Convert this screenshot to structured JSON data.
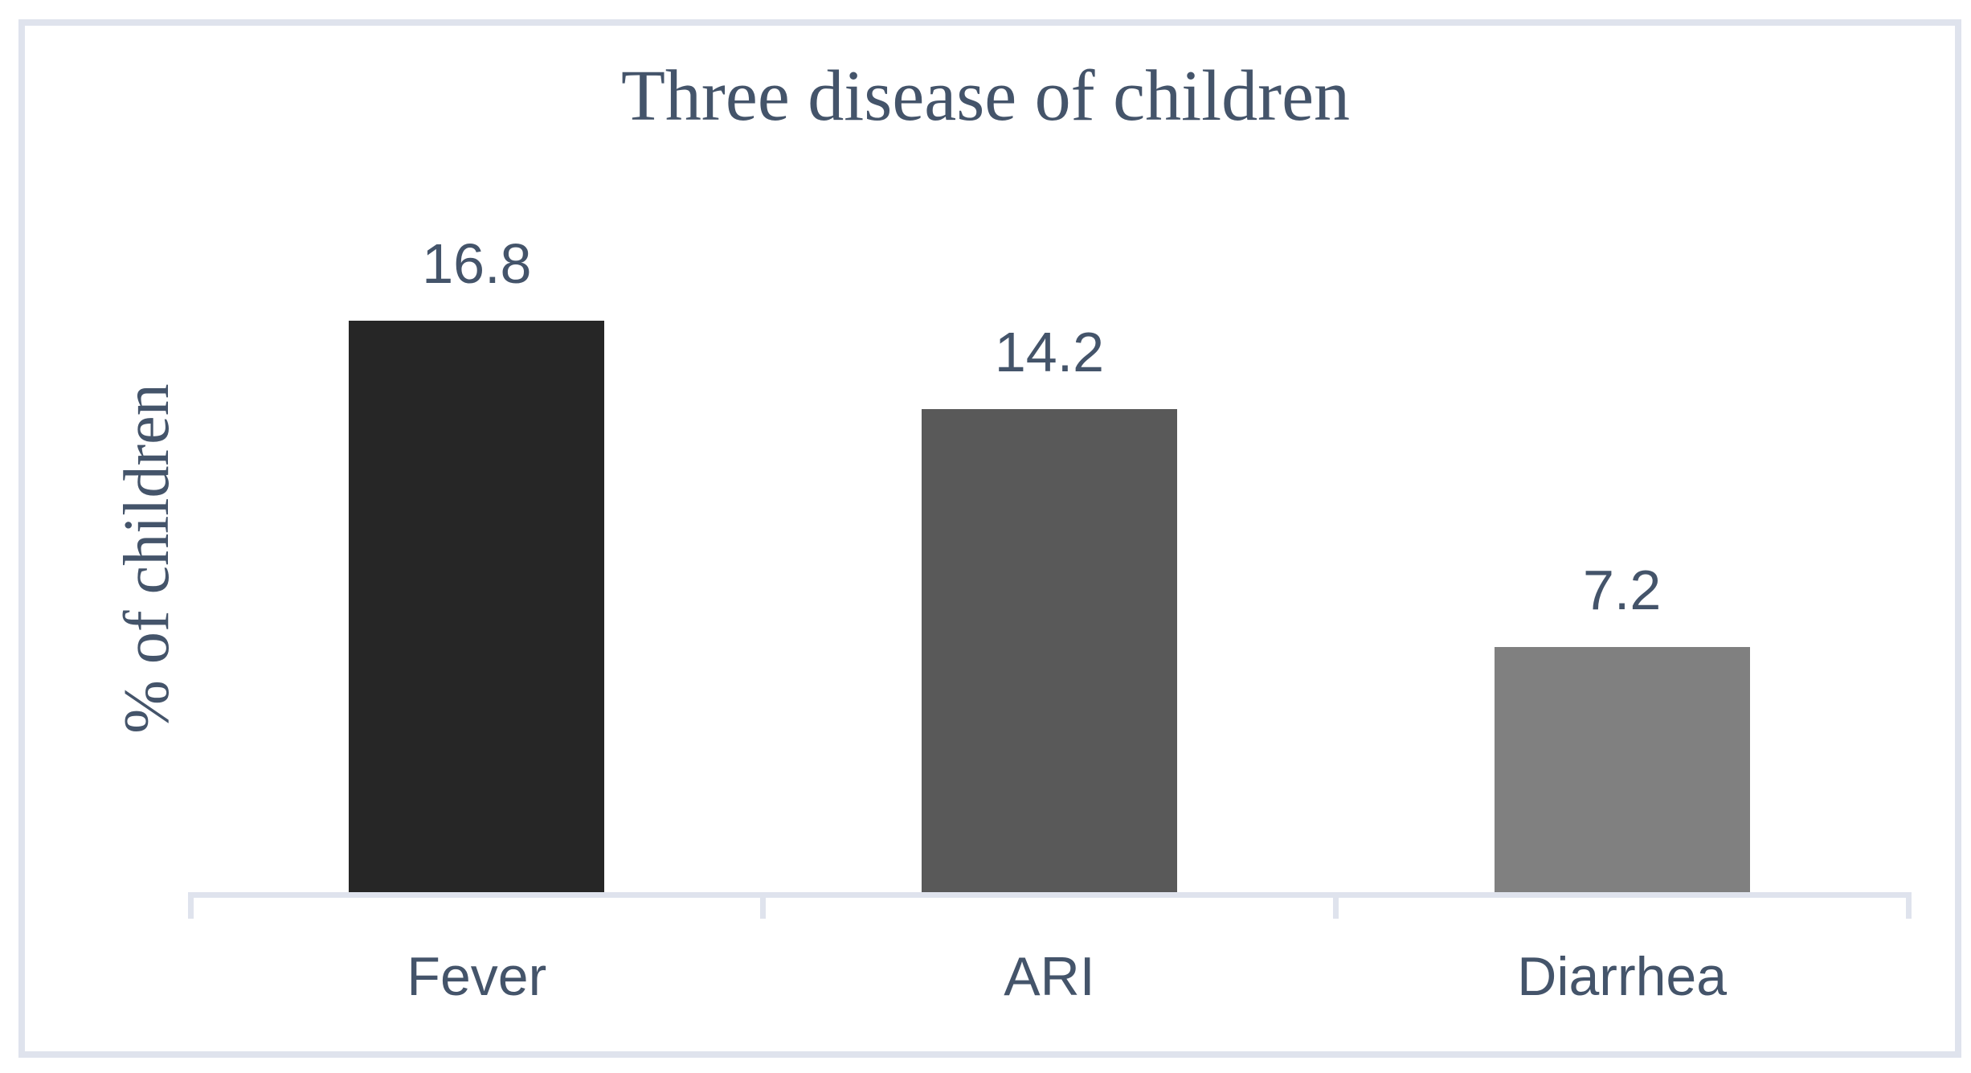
{
  "chart_data": {
    "type": "bar",
    "title": "Three disease of children",
    "categories": [
      "Fever",
      "ARI",
      "Diarrhea"
    ],
    "values": [
      16.8,
      14.2,
      7.2
    ],
    "value_labels": [
      "16.8",
      "14.2",
      "7.2"
    ],
    "xlabel": "",
    "ylabel": "% of children",
    "ylim": [
      0,
      22
    ],
    "grid": false,
    "legend": "none",
    "y_axis_ticks_visible": false,
    "bar_colors": [
      "#262626",
      "#595959",
      "#808080"
    ],
    "text_color": "#44546A",
    "axis_color": "#DFE3ED",
    "frame_border_color": "#DFE3ED"
  }
}
